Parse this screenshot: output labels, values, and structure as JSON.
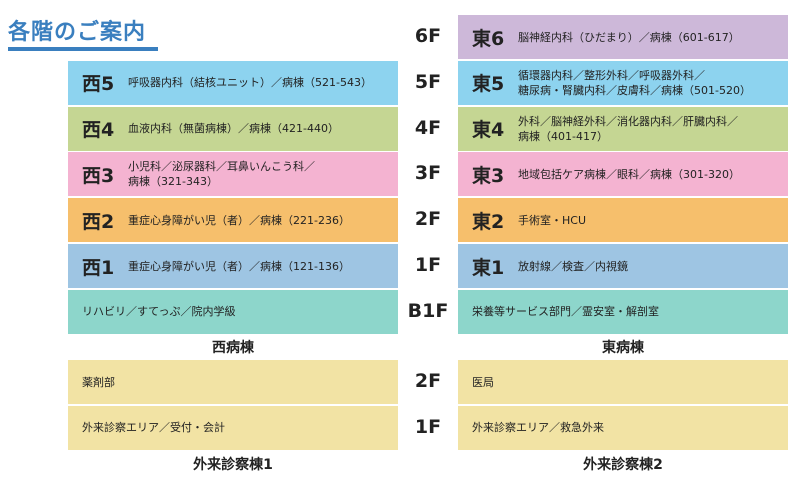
{
  "header": {
    "title": "各階のご案内"
  },
  "wards": {
    "floors": [
      {
        "floor": "6F",
        "east": {
          "code": "東6",
          "lines": [
            "脳神経内科（ひだまり）／病棟（601-617）"
          ]
        }
      },
      {
        "floor": "5F",
        "west": {
          "code": "西5",
          "lines": [
            "呼吸器内科（結核ユニット）／病棟（521-543）"
          ]
        },
        "east": {
          "code": "東5",
          "lines": [
            "循環器内科／整形外科／呼吸器外科／",
            "糖尿病・腎臓内科／皮膚科／病棟（501-520）"
          ]
        }
      },
      {
        "floor": "4F",
        "west": {
          "code": "西4",
          "lines": [
            "血液内科（無菌病棟）／病棟（421-440）"
          ]
        },
        "east": {
          "code": "東4",
          "lines": [
            "外科／脳神経外科／消化器内科／肝臓内科／",
            "病棟（401-417）"
          ]
        }
      },
      {
        "floor": "3F",
        "west": {
          "code": "西3",
          "lines": [
            "小児科／泌尿器科／耳鼻いんこう科／",
            "病棟（321-343）"
          ]
        },
        "east": {
          "code": "東3",
          "lines": [
            "地域包括ケア病棟／眼科／病棟（301-320）"
          ]
        }
      },
      {
        "floor": "2F",
        "west": {
          "code": "西2",
          "lines": [
            "重症心身障がい児（者）／病棟（221-236）"
          ]
        },
        "east": {
          "code": "東2",
          "lines": [
            "手術室・HCU"
          ]
        }
      },
      {
        "floor": "1F",
        "west": {
          "code": "西1",
          "lines": [
            "重症心身障がい児（者）／病棟（121-136）"
          ]
        },
        "east": {
          "code": "東1",
          "lines": [
            "放射線／検査／内視鏡"
          ]
        }
      },
      {
        "floor": "B1F",
        "west": {
          "lines": [
            "リハビリ／すてっぷ／院内学級"
          ]
        },
        "east": {
          "lines": [
            "栄養等サービス部門／霊安室・解剖室"
          ]
        }
      }
    ],
    "west_label": "西病棟",
    "east_label": "東病棟"
  },
  "outpatient": {
    "floors": [
      {
        "floor": "2F",
        "west": {
          "lines": [
            "薬剤部"
          ]
        },
        "east": {
          "lines": [
            "医局"
          ]
        }
      },
      {
        "floor": "1F",
        "west": {
          "lines": [
            "外来診察エリア／受付・会計"
          ]
        },
        "east": {
          "lines": [
            "外来診察エリア／救急外来"
          ]
        }
      }
    ],
    "west_label": "外来診察棟1",
    "east_label": "外来診察棟2"
  }
}
